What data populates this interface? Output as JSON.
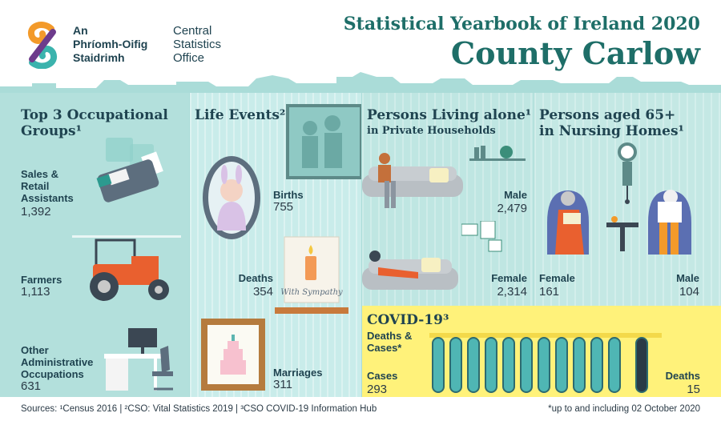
{
  "header": {
    "logo_irish": [
      "An",
      "Phríomh-Oifig",
      "Staidrimh"
    ],
    "logo_english": [
      "Central",
      "Statistics",
      "Office"
    ],
    "yearbook_title": "Statistical Yearbook of Ireland 2020",
    "county": "County Carlow"
  },
  "occupational": {
    "title_line1": "Top 3 Occupational",
    "title_line2": "Groups¹",
    "items": [
      {
        "label": [
          "Sales &",
          "Retail",
          "Assistants"
        ],
        "value": "1,392"
      },
      {
        "label": [
          "Farmers"
        ],
        "value": "1,113"
      },
      {
        "label": [
          "Other",
          "Administrative",
          "Occupations"
        ],
        "value": "631"
      }
    ]
  },
  "life_events": {
    "title": "Life Events²",
    "births_label": "Births",
    "births_value": "755",
    "deaths_label": "Deaths",
    "deaths_value": "354",
    "marriages_label": "Marriages",
    "marriages_value": "311",
    "card_text": "With Sympathy"
  },
  "living_alone": {
    "title": "Persons Living alone¹",
    "subtitle": "in Private Households",
    "male_label": "Male",
    "male_value": "2,479",
    "female_label": "Female",
    "female_value": "2,314"
  },
  "nursing": {
    "title_line1": "Persons aged 65+",
    "title_line2": "in Nursing Homes¹",
    "female_label": "Female",
    "female_value": "161",
    "male_label": "Male",
    "male_value": "104"
  },
  "covid": {
    "title": "COVID-19³",
    "subtitle_line1": "Deaths &",
    "subtitle_line2": "Cases*",
    "cases_label": "Cases",
    "cases_value": "293",
    "deaths_label": "Deaths",
    "deaths_value": "15"
  },
  "footer": {
    "sources": "Sources: ¹Census 2016  |  ²CSO: Vital Statistics 2019  |  ³CSO COVID-19 Information Hub",
    "footnote": "*up to and including 02 October 2020"
  },
  "colors": {
    "brand_orange": "#f39a2a",
    "brand_teal": "#3bb3ad",
    "title_green": "#1e6e68",
    "covid_yellow": "#fff27a"
  }
}
